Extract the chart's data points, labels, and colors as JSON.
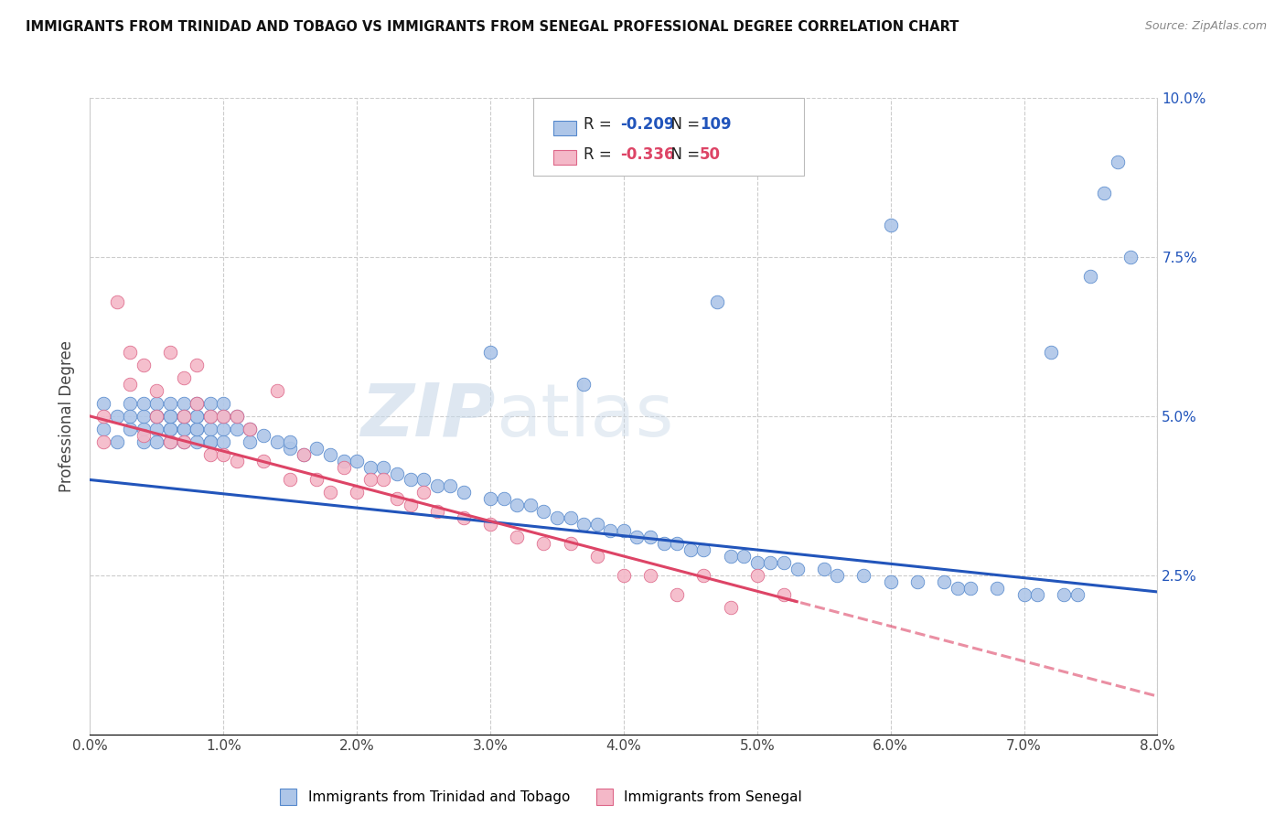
{
  "title": "IMMIGRANTS FROM TRINIDAD AND TOBAGO VS IMMIGRANTS FROM SENEGAL PROFESSIONAL DEGREE CORRELATION CHART",
  "source": "Source: ZipAtlas.com",
  "xlabel_series1": "Immigrants from Trinidad and Tobago",
  "xlabel_series2": "Immigrants from Senegal",
  "ylabel": "Professional Degree",
  "xlim": [
    0.0,
    0.08
  ],
  "ylim": [
    0.0,
    0.1
  ],
  "xticks": [
    0.0,
    0.01,
    0.02,
    0.03,
    0.04,
    0.05,
    0.06,
    0.07,
    0.08
  ],
  "xtick_labels": [
    "0.0%",
    "1.0%",
    "2.0%",
    "3.0%",
    "4.0%",
    "5.0%",
    "6.0%",
    "7.0%",
    "8.0%"
  ],
  "yticks": [
    0.0,
    0.025,
    0.05,
    0.075,
    0.1
  ],
  "ytick_labels": [
    "",
    "2.5%",
    "5.0%",
    "7.5%",
    "10.0%"
  ],
  "series1_color": "#aec6e8",
  "series2_color": "#f4b8c8",
  "series1_edge": "#5588cc",
  "series2_edge": "#dd6688",
  "trendline1_color": "#2255bb",
  "trendline2_color": "#dd4466",
  "R1": -0.209,
  "N1": 109,
  "R2": -0.336,
  "N2": 50,
  "watermark_zip": "ZIP",
  "watermark_atlas": "atlas",
  "trendline1_intercept": 0.04,
  "trendline1_slope": -0.22,
  "trendline2_intercept": 0.05,
  "trendline2_slope": -0.55,
  "series1_x": [
    0.001,
    0.001,
    0.002,
    0.002,
    0.003,
    0.003,
    0.003,
    0.004,
    0.004,
    0.004,
    0.004,
    0.005,
    0.005,
    0.005,
    0.005,
    0.005,
    0.006,
    0.006,
    0.006,
    0.006,
    0.006,
    0.006,
    0.007,
    0.007,
    0.007,
    0.007,
    0.007,
    0.007,
    0.008,
    0.008,
    0.008,
    0.008,
    0.008,
    0.008,
    0.009,
    0.009,
    0.009,
    0.009,
    0.009,
    0.01,
    0.01,
    0.01,
    0.01,
    0.011,
    0.011,
    0.012,
    0.012,
    0.013,
    0.014,
    0.015,
    0.015,
    0.016,
    0.017,
    0.018,
    0.019,
    0.02,
    0.021,
    0.022,
    0.023,
    0.024,
    0.025,
    0.026,
    0.027,
    0.028,
    0.03,
    0.031,
    0.032,
    0.033,
    0.034,
    0.035,
    0.036,
    0.037,
    0.038,
    0.039,
    0.04,
    0.041,
    0.042,
    0.043,
    0.044,
    0.045,
    0.046,
    0.048,
    0.049,
    0.05,
    0.051,
    0.052,
    0.053,
    0.055,
    0.056,
    0.058,
    0.06,
    0.062,
    0.064,
    0.065,
    0.066,
    0.068,
    0.07,
    0.071,
    0.073,
    0.074,
    0.075,
    0.076,
    0.077,
    0.078,
    0.03,
    0.037,
    0.047,
    0.06,
    0.072
  ],
  "series1_y": [
    0.048,
    0.052,
    0.046,
    0.05,
    0.048,
    0.052,
    0.05,
    0.048,
    0.05,
    0.052,
    0.046,
    0.048,
    0.05,
    0.052,
    0.046,
    0.05,
    0.048,
    0.05,
    0.052,
    0.046,
    0.048,
    0.05,
    0.048,
    0.05,
    0.052,
    0.046,
    0.048,
    0.05,
    0.048,
    0.05,
    0.046,
    0.052,
    0.048,
    0.05,
    0.046,
    0.048,
    0.05,
    0.052,
    0.046,
    0.048,
    0.05,
    0.046,
    0.052,
    0.048,
    0.05,
    0.046,
    0.048,
    0.047,
    0.046,
    0.045,
    0.046,
    0.044,
    0.045,
    0.044,
    0.043,
    0.043,
    0.042,
    0.042,
    0.041,
    0.04,
    0.04,
    0.039,
    0.039,
    0.038,
    0.037,
    0.037,
    0.036,
    0.036,
    0.035,
    0.034,
    0.034,
    0.033,
    0.033,
    0.032,
    0.032,
    0.031,
    0.031,
    0.03,
    0.03,
    0.029,
    0.029,
    0.028,
    0.028,
    0.027,
    0.027,
    0.027,
    0.026,
    0.026,
    0.025,
    0.025,
    0.024,
    0.024,
    0.024,
    0.023,
    0.023,
    0.023,
    0.022,
    0.022,
    0.022,
    0.022,
    0.072,
    0.085,
    0.09,
    0.075,
    0.06,
    0.055,
    0.068,
    0.08,
    0.06
  ],
  "series2_x": [
    0.001,
    0.001,
    0.002,
    0.003,
    0.003,
    0.004,
    0.004,
    0.005,
    0.005,
    0.006,
    0.006,
    0.007,
    0.007,
    0.007,
    0.008,
    0.008,
    0.009,
    0.009,
    0.01,
    0.01,
    0.011,
    0.011,
    0.012,
    0.013,
    0.014,
    0.015,
    0.016,
    0.017,
    0.018,
    0.019,
    0.02,
    0.021,
    0.022,
    0.023,
    0.024,
    0.025,
    0.026,
    0.028,
    0.03,
    0.032,
    0.034,
    0.036,
    0.038,
    0.04,
    0.042,
    0.044,
    0.046,
    0.048,
    0.05,
    0.052
  ],
  "series2_y": [
    0.05,
    0.046,
    0.068,
    0.06,
    0.055,
    0.058,
    0.047,
    0.054,
    0.05,
    0.06,
    0.046,
    0.056,
    0.05,
    0.046,
    0.058,
    0.052,
    0.05,
    0.044,
    0.05,
    0.044,
    0.05,
    0.043,
    0.048,
    0.043,
    0.054,
    0.04,
    0.044,
    0.04,
    0.038,
    0.042,
    0.038,
    0.04,
    0.04,
    0.037,
    0.036,
    0.038,
    0.035,
    0.034,
    0.033,
    0.031,
    0.03,
    0.03,
    0.028,
    0.025,
    0.025,
    0.022,
    0.025,
    0.02,
    0.025,
    0.022
  ]
}
